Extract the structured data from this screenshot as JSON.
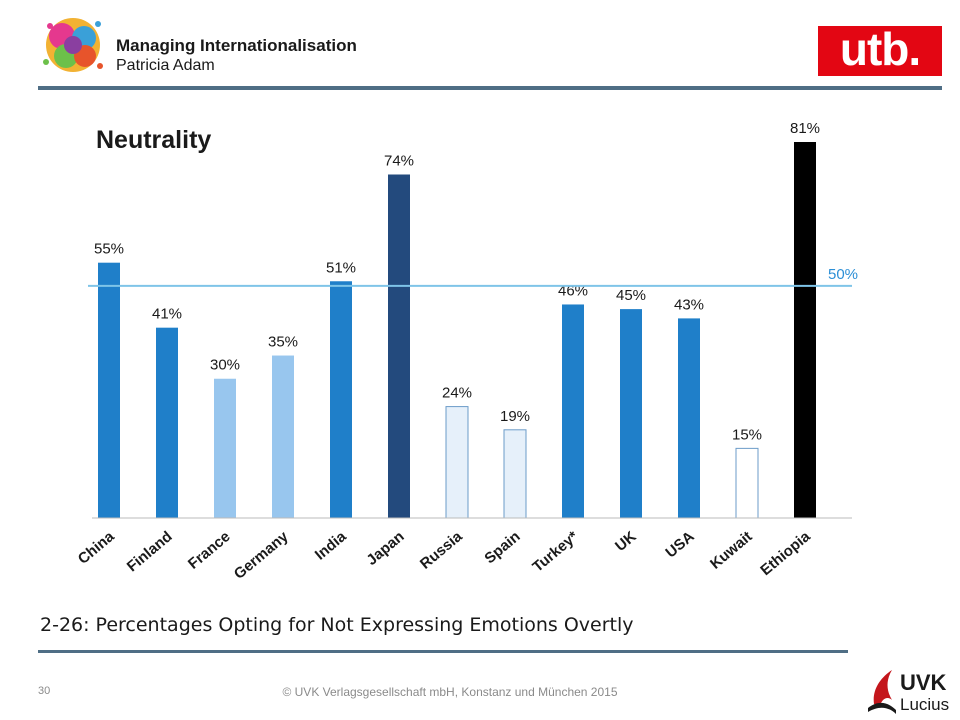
{
  "header": {
    "title": "Managing Internationalisation",
    "subtitle": "Patricia Adam",
    "publisher_logo_text": "utb."
  },
  "caption": "2-26: Percentages Opting for Not Expressing Emotions Overtly",
  "footer": {
    "page_number": "30",
    "copyright": "© UVK Verlagsgesellschaft mbH, Konstanz und München 2015",
    "logo_text_main": "UVK",
    "logo_text_sub": "Lucius"
  },
  "chart_data": {
    "type": "bar",
    "title": "Neutrality",
    "categories": [
      "China",
      "Finland",
      "France",
      "Germany",
      "India",
      "Japan",
      "Russia",
      "Spain",
      "Turkey*",
      "UK",
      "USA",
      "Kuwait",
      "Ethiopia"
    ],
    "values": [
      55,
      41,
      30,
      35,
      51,
      74,
      24,
      19,
      46,
      45,
      43,
      15,
      81
    ],
    "data_labels": [
      "55%",
      "41%",
      "30%",
      "35%",
      "51%",
      "74%",
      "24%",
      "19%",
      "46%",
      "45%",
      "43%",
      "15%",
      "81%"
    ],
    "bar_colors": [
      "#1f7fc9",
      "#1f7fc9",
      "#98c6ee",
      "#98c6ee",
      "#1f7fc9",
      "#234a7d",
      "#e6f0fa",
      "#e6f0fa",
      "#1f7fc9",
      "#1f7fc9",
      "#1f7fc9",
      "#ffffff",
      "#000000"
    ],
    "reference_line": {
      "value": 50,
      "label": "50%",
      "color": "#7fc4e8"
    },
    "ylim": [
      0,
      81
    ],
    "grid": false,
    "xlabel": "",
    "ylabel": ""
  }
}
